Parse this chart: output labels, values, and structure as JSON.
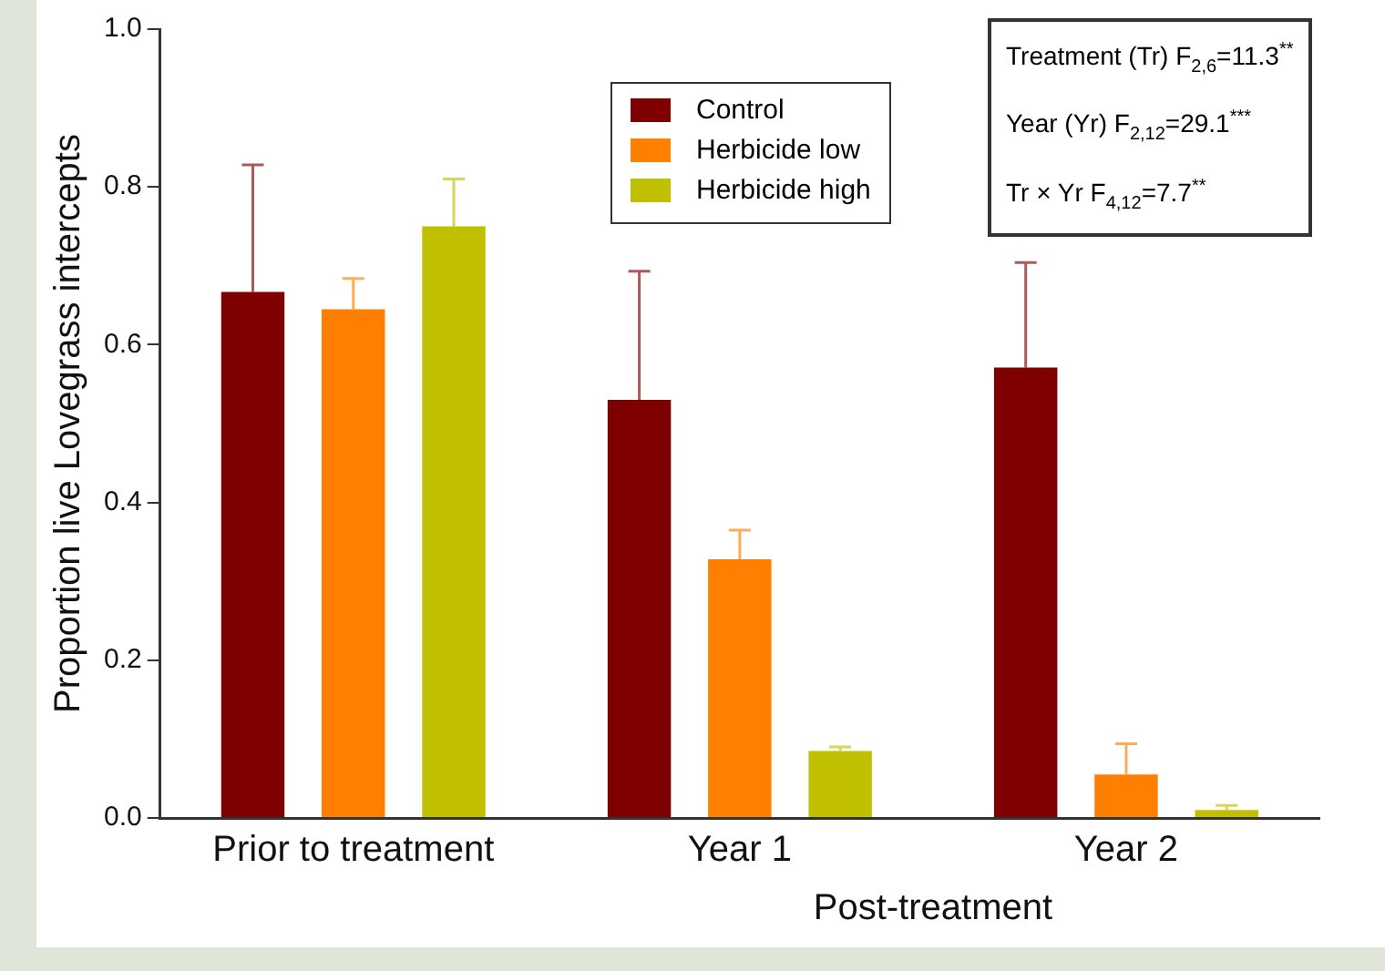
{
  "chart_data": {
    "type": "bar",
    "ylabel": "Proportion live Lovegrass intercepts",
    "xlabel": "Post-treatment",
    "categories": [
      "Prior to treatment",
      "Year 1",
      "Year 2"
    ],
    "series": [
      {
        "name": "Control",
        "color": "#7f0000",
        "values": [
          0.667,
          0.53,
          0.571
        ],
        "errors": [
          [
            0.667,
            0.828
          ],
          [
            0.53,
            0.693
          ],
          [
            0.571,
            0.704
          ]
        ]
      },
      {
        "name": "Herbicide low",
        "color": "#ff8000",
        "values": [
          0.645,
          0.328,
          0.055
        ],
        "errors": [
          [
            0.645,
            0.684
          ],
          [
            0.328,
            0.365
          ],
          [
            0.055,
            0.094
          ]
        ]
      },
      {
        "name": "Herbicide high",
        "color": "#c0c000",
        "values": [
          0.75,
          0.085,
          0.01
        ],
        "errors": [
          [
            0.75,
            0.81
          ],
          [
            0.085,
            0.09
          ],
          [
            0.01,
            0.016
          ]
        ]
      }
    ],
    "ylim": [
      0,
      1
    ],
    "yticks": [
      {
        "value": 0,
        "label": "0.0"
      },
      {
        "value": 0.2,
        "label": "0.2"
      },
      {
        "value": 0.4,
        "label": "0.4"
      },
      {
        "value": 0.6,
        "label": "0.6"
      },
      {
        "value": 0.8,
        "label": "0.8"
      },
      {
        "value": 1,
        "label": "1.0"
      }
    ],
    "legend": "top",
    "grid": false,
    "annotations": [
      "Treatment (Tr) F$_{2,6}$=11.3$^{**}$",
      "Year (Yr) F$_{2,12}$=29.1$^{***}$",
      "Tr × Yr  F$_{4,12}$=7.7$^{**}$"
    ]
  }
}
